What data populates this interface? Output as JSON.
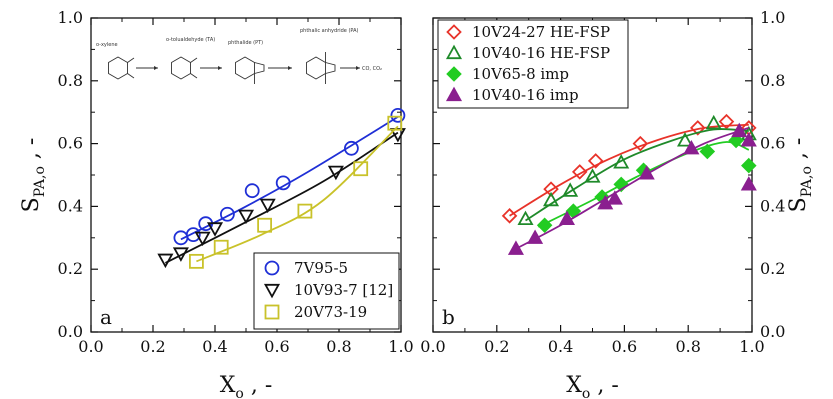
{
  "colors": {
    "blue": "#1f2fd6",
    "black": "#111111",
    "yellow": "#c9c22a",
    "red": "#e8332a",
    "green_dark": "#1f8a2a",
    "green_light": "#22cc22",
    "purple": "#8a1f8f"
  },
  "scheme": {
    "steps": [
      "o-xylene",
      "o-tolualdehyde (TA)",
      "phthalide (PT)",
      "phthalic anhydride (PA)",
      "CO, CO₂"
    ]
  },
  "chart_data": [
    {
      "type": "scatter",
      "panel_letter": "a",
      "xlabel": "X",
      "xlabel_sub": "o",
      "xlabel_suffix": " , -",
      "ylabel": "S",
      "ylabel_sub": "PA,o",
      "ylabel_suffix": " , -",
      "xlim": [
        0.0,
        1.0
      ],
      "ylim": [
        0.0,
        1.0
      ],
      "xticks": [
        "0.0",
        "0.2",
        "0.4",
        "0.6",
        "0.8",
        "1.0"
      ],
      "yticks": [
        "0.0",
        "0.2",
        "0.4",
        "0.6",
        "0.8",
        "1.0"
      ],
      "legend_position": "bottom-right",
      "series": [
        {
          "name": "7V95-5",
          "marker": "circle-open",
          "color": "#1f2fd6",
          "points": [
            [
              0.29,
              0.3
            ],
            [
              0.33,
              0.31
            ],
            [
              0.37,
              0.345
            ],
            [
              0.44,
              0.375
            ],
            [
              0.52,
              0.45
            ],
            [
              0.62,
              0.475
            ],
            [
              0.84,
              0.585
            ],
            [
              0.99,
              0.69
            ]
          ],
          "fit": [
            [
              0.29,
              0.295
            ],
            [
              0.5,
              0.4
            ],
            [
              0.7,
              0.51
            ],
            [
              0.99,
              0.685
            ]
          ]
        },
        {
          "name": "10V93-7 [12]",
          "marker": "triangle-down-open",
          "color": "#111111",
          "points": [
            [
              0.24,
              0.23
            ],
            [
              0.29,
              0.25
            ],
            [
              0.36,
              0.3
            ],
            [
              0.4,
              0.33
            ],
            [
              0.5,
              0.37
            ],
            [
              0.57,
              0.405
            ],
            [
              0.79,
              0.51
            ],
            [
              0.99,
              0.63
            ]
          ],
          "fit": [
            [
              0.24,
              0.22
            ],
            [
              0.5,
              0.35
            ],
            [
              0.75,
              0.48
            ],
            [
              0.99,
              0.635
            ]
          ]
        },
        {
          "name": "20V73-19",
          "marker": "square-open",
          "color": "#c9c22a",
          "points": [
            [
              0.34,
              0.225
            ],
            [
              0.42,
              0.27
            ],
            [
              0.56,
              0.34
            ],
            [
              0.69,
              0.385
            ],
            [
              0.87,
              0.52
            ],
            [
              0.98,
              0.665
            ]
          ],
          "fit": [
            [
              0.34,
              0.225
            ],
            [
              0.55,
              0.31
            ],
            [
              0.75,
              0.42
            ],
            [
              0.99,
              0.655
            ]
          ]
        }
      ]
    },
    {
      "type": "scatter",
      "panel_letter": "b",
      "xlabel": "X",
      "xlabel_sub": "o",
      "xlabel_suffix": " , -",
      "ylabel": "S",
      "ylabel_sub": "PA,o",
      "ylabel_suffix": " , -",
      "xlim": [
        0.0,
        1.0
      ],
      "ylim": [
        0.0,
        1.0
      ],
      "xticks": [
        "0.0",
        "0.2",
        "0.4",
        "0.6",
        "0.8",
        "1.0"
      ],
      "yticks": [
        "0.0",
        "0.2",
        "0.4",
        "0.6",
        "0.8",
        "1.0"
      ],
      "legend_position": "top-left",
      "series": [
        {
          "name": "10V24-27 HE-FSP",
          "marker": "diamond-open",
          "color": "#e8332a",
          "points": [
            [
              0.24,
              0.37
            ],
            [
              0.37,
              0.455
            ],
            [
              0.46,
              0.51
            ],
            [
              0.51,
              0.545
            ],
            [
              0.65,
              0.6
            ],
            [
              0.83,
              0.65
            ],
            [
              0.92,
              0.67
            ],
            [
              0.99,
              0.65
            ]
          ],
          "fit": [
            [
              0.24,
              0.37
            ],
            [
              0.4,
              0.47
            ],
            [
              0.55,
              0.55
            ],
            [
              0.7,
              0.61
            ],
            [
              0.85,
              0.65
            ],
            [
              0.99,
              0.66
            ]
          ]
        },
        {
          "name": "10V40-16 HE-FSP",
          "marker": "triangle-up-open",
          "color": "#1f8a2a",
          "points": [
            [
              0.29,
              0.36
            ],
            [
              0.37,
              0.42
            ],
            [
              0.43,
              0.45
            ],
            [
              0.5,
              0.495
            ],
            [
              0.59,
              0.54
            ],
            [
              0.79,
              0.61
            ],
            [
              0.88,
              0.665
            ],
            [
              0.99,
              0.63
            ]
          ],
          "fit": [
            [
              0.29,
              0.355
            ],
            [
              0.45,
              0.46
            ],
            [
              0.6,
              0.55
            ],
            [
              0.75,
              0.61
            ],
            [
              0.88,
              0.645
            ],
            [
              0.99,
              0.64
            ]
          ]
        },
        {
          "name": "10V65-8 imp",
          "marker": "diamond-filled",
          "color": "#22cc22",
          "points": [
            [
              0.35,
              0.34
            ],
            [
              0.44,
              0.385
            ],
            [
              0.53,
              0.43
            ],
            [
              0.59,
              0.47
            ],
            [
              0.66,
              0.515
            ],
            [
              0.86,
              0.575
            ],
            [
              0.95,
              0.61
            ],
            [
              0.99,
              0.53
            ]
          ],
          "fit": [
            [
              0.33,
              0.335
            ],
            [
              0.5,
              0.42
            ],
            [
              0.65,
              0.5
            ],
            [
              0.8,
              0.57
            ],
            [
              0.92,
              0.605
            ],
            [
              0.99,
              0.58
            ]
          ]
        },
        {
          "name": "10V40-16 imp",
          "marker": "triangle-up-filled",
          "color": "#8a1f8f",
          "points": [
            [
              0.26,
              0.265
            ],
            [
              0.32,
              0.3
            ],
            [
              0.42,
              0.36
            ],
            [
              0.54,
              0.41
            ],
            [
              0.57,
              0.425
            ],
            [
              0.67,
              0.505
            ],
            [
              0.81,
              0.585
            ],
            [
              0.96,
              0.64
            ],
            [
              0.99,
              0.61
            ],
            [
              0.99,
              0.47
            ]
          ],
          "fit": [
            [
              0.26,
              0.265
            ],
            [
              0.4,
              0.34
            ],
            [
              0.55,
              0.43
            ],
            [
              0.7,
              0.52
            ],
            [
              0.85,
              0.6
            ],
            [
              0.99,
              0.65
            ]
          ]
        }
      ]
    }
  ]
}
